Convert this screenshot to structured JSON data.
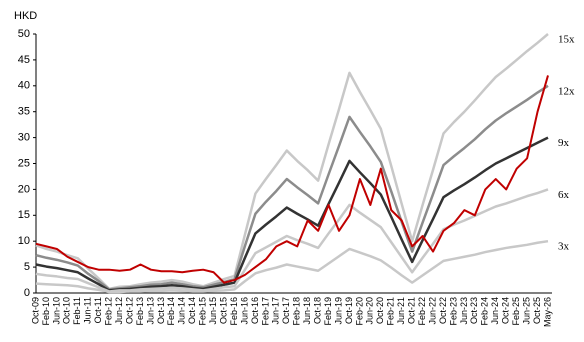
{
  "chart_data": {
    "type": "line",
    "y_label": "HKD",
    "categories": [
      "Oct-09",
      "Feb-10",
      "Jun-10",
      "Oct-10",
      "Feb-11",
      "Jun-11",
      "Oct-11",
      "Feb-12",
      "Jun-12",
      "Oct-12",
      "Feb-13",
      "Jun-13",
      "Oct-13",
      "Feb-14",
      "Jun-14",
      "Oct-14",
      "Feb-15",
      "Jun-15",
      "Oct-15",
      "Feb-16",
      "Jun-16",
      "Oct-16",
      "Feb-17",
      "Jun-17",
      "Oct-17",
      "Feb-18",
      "Jun-18",
      "Oct-18",
      "Feb-19",
      "Jun-19",
      "Oct-19",
      "Feb-20",
      "Jun-20",
      "Oct-20",
      "Feb-21",
      "Jun-21",
      "Oct-21",
      "Feb-22",
      "Jun-22",
      "Oct-22",
      "Feb-23",
      "Jun-23",
      "Oct-23",
      "Feb-24",
      "Jun-24",
      "Oct-24",
      "Feb-25",
      "Jun-25",
      "Oct-25",
      "May-26"
    ],
    "ylim": [
      0,
      50
    ],
    "yticks": [
      0,
      5,
      10,
      15,
      20,
      25,
      30,
      35,
      40,
      45,
      50
    ],
    "series": [
      {
        "name": "15x",
        "color": "#c8c8c8",
        "values": [
          9.2,
          8.5,
          8.0,
          7.3,
          6.7,
          4.7,
          2.8,
          0.8,
          1.2,
          1.3,
          1.7,
          2.0,
          2.2,
          2.5,
          2.2,
          1.7,
          1.3,
          2.0,
          2.7,
          3.3,
          11.3,
          19.2,
          22.0,
          24.7,
          27.5,
          25.5,
          23.7,
          21.7,
          28.7,
          35.5,
          42.5,
          38.8,
          35.3,
          31.7,
          24.5,
          17.2,
          10.0,
          17.0,
          23.8,
          30.8,
          33.0,
          35.0,
          37.2,
          39.5,
          41.7,
          43.3,
          45.0,
          46.7,
          48.3,
          50.0
        ]
      },
      {
        "name": "12x",
        "color": "#8c8c8c",
        "values": [
          7.3,
          6.8,
          6.4,
          5.9,
          5.3,
          3.7,
          2.3,
          0.7,
          0.9,
          1.1,
          1.3,
          1.6,
          1.7,
          2.0,
          1.7,
          1.3,
          1.1,
          1.6,
          2.1,
          2.7,
          9.1,
          15.3,
          17.6,
          19.7,
          22.0,
          20.4,
          18.9,
          17.3,
          22.9,
          28.4,
          34.0,
          31.1,
          28.3,
          25.3,
          19.6,
          13.7,
          8.0,
          13.6,
          19.1,
          24.7,
          26.4,
          28.0,
          29.7,
          31.6,
          33.3,
          34.7,
          36.0,
          37.3,
          38.7,
          40.0
        ]
      },
      {
        "name": "9x",
        "color": "#333333",
        "values": [
          5.5,
          5.1,
          4.8,
          4.4,
          4.0,
          2.8,
          1.7,
          0.5,
          0.7,
          0.8,
          1.0,
          1.2,
          1.3,
          1.5,
          1.3,
          1.0,
          0.8,
          1.2,
          1.6,
          2.0,
          6.8,
          11.5,
          13.2,
          14.8,
          16.5,
          15.3,
          14.2,
          13.0,
          17.2,
          21.3,
          25.5,
          23.3,
          21.2,
          19.0,
          14.7,
          10.3,
          6.0,
          10.2,
          14.3,
          18.5,
          19.8,
          21.0,
          22.3,
          23.7,
          25.0,
          26.0,
          27.0,
          28.0,
          29.0,
          30.0
        ]
      },
      {
        "name": "6x",
        "color": "#c8c8c8",
        "values": [
          3.7,
          3.4,
          3.2,
          2.9,
          2.7,
          1.9,
          1.1,
          0.3,
          0.5,
          0.5,
          0.7,
          0.8,
          0.9,
          1.0,
          0.9,
          0.7,
          0.5,
          0.8,
          1.1,
          1.3,
          4.5,
          7.7,
          8.8,
          9.9,
          11.0,
          10.2,
          9.5,
          8.7,
          11.5,
          14.2,
          17.0,
          15.5,
          14.1,
          12.7,
          9.8,
          6.9,
          4.0,
          6.8,
          9.5,
          12.3,
          13.2,
          14.0,
          14.9,
          15.8,
          16.7,
          17.3,
          18.0,
          18.7,
          19.3,
          20.0
        ]
      },
      {
        "name": "3x",
        "color": "#c8c8c8",
        "values": [
          1.8,
          1.7,
          1.6,
          1.5,
          1.3,
          0.9,
          0.6,
          0.2,
          0.2,
          0.3,
          0.3,
          0.4,
          0.4,
          0.5,
          0.4,
          0.3,
          0.3,
          0.4,
          0.5,
          0.7,
          2.3,
          3.8,
          4.4,
          4.9,
          5.5,
          5.1,
          4.7,
          4.3,
          5.7,
          7.1,
          8.5,
          7.8,
          7.1,
          6.3,
          4.9,
          3.4,
          2.0,
          3.4,
          4.8,
          6.2,
          6.6,
          7.0,
          7.4,
          7.9,
          8.3,
          8.7,
          9.0,
          9.3,
          9.7,
          10.0
        ]
      },
      {
        "color": "#c00000",
        "values": [
          9.5,
          9,
          8.5,
          7,
          6,
          5,
          4.5,
          4.5,
          4.3,
          4.5,
          5.5,
          4.5,
          4.2,
          4.2,
          4,
          4.3,
          4.5,
          4,
          2,
          2.5,
          3.5,
          5,
          6.5,
          9,
          10,
          9,
          14,
          12,
          17,
          12,
          15,
          22,
          17,
          24,
          16,
          14,
          9,
          11,
          8,
          12,
          13.5,
          16,
          15,
          20,
          22,
          20,
          24,
          26,
          35,
          42
        ]
      }
    ]
  }
}
